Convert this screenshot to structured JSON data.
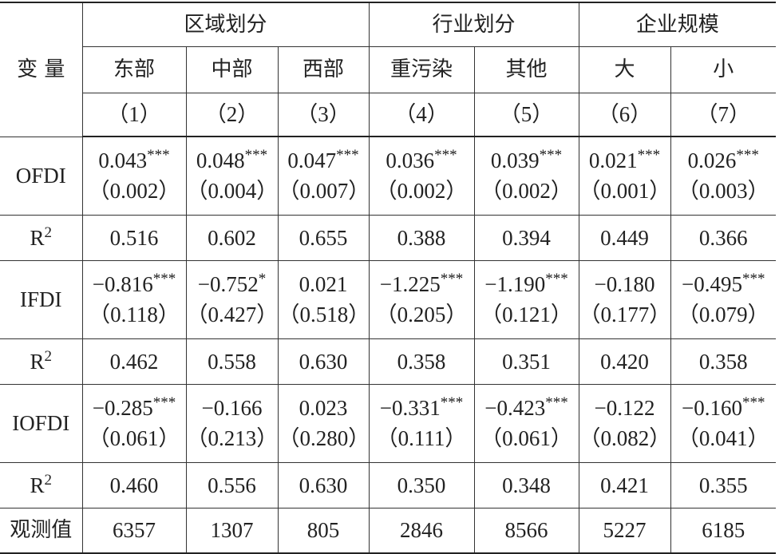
{
  "header": {
    "variable": "变 量",
    "groups": [
      "区域划分",
      "行业划分",
      "企业规模"
    ],
    "subgroups": [
      "东部",
      "中部",
      "西部",
      "重污染",
      "其他",
      "大",
      "小"
    ],
    "columns": [
      "（1）",
      "（2）",
      "（3）",
      "（4）",
      "（5）",
      "（6）",
      "（7）"
    ]
  },
  "rows": [
    {
      "label": "OFDI",
      "cells": [
        {
          "coef": "0.043",
          "stars": "***",
          "se": "（0.002）"
        },
        {
          "coef": "0.048",
          "stars": "***",
          "se": "（0.004）"
        },
        {
          "coef": "0.047",
          "stars": "***",
          "se": "（0.007）"
        },
        {
          "coef": "0.036",
          "stars": "***",
          "se": "（0.002）"
        },
        {
          "coef": "0.039",
          "stars": "***",
          "se": "（0.002）"
        },
        {
          "coef": "0.021",
          "stars": "***",
          "se": "（0.001）"
        },
        {
          "coef": "0.026",
          "stars": "***",
          "se": "（0.003）"
        }
      ]
    },
    {
      "label": {
        "base": "R",
        "sup": "2"
      },
      "values": [
        "0.516",
        "0.602",
        "0.655",
        "0.388",
        "0.394",
        "0.449",
        "0.366"
      ]
    },
    {
      "label": "IFDI",
      "cells": [
        {
          "coef": "−0.816",
          "stars": "***",
          "se": "（0.118）"
        },
        {
          "coef": "−0.752",
          "stars": "*",
          "se": "（0.427）"
        },
        {
          "coef": "0.021",
          "se": "（0.518）"
        },
        {
          "coef": "−1.225",
          "stars": "***",
          "se": "（0.205）"
        },
        {
          "coef": "−1.190",
          "stars": "***",
          "se": "（0.121）"
        },
        {
          "coef": "−0.180",
          "se": "（0.177）"
        },
        {
          "coef": "−0.495",
          "stars": "***",
          "se": "（0.079）"
        }
      ]
    },
    {
      "label": {
        "base": "R",
        "sup": "2"
      },
      "values": [
        "0.462",
        "0.558",
        "0.630",
        "0.358",
        "0.351",
        "0.420",
        "0.358"
      ]
    },
    {
      "label": "IOFDI",
      "cells": [
        {
          "coef": "−0.285",
          "stars": "***",
          "se": "（0.061）"
        },
        {
          "coef": "−0.166",
          "se": "（0.213）"
        },
        {
          "coef": "0.023",
          "se": "（0.280）"
        },
        {
          "coef": "−0.331",
          "stars": "***",
          "se": "（0.111）"
        },
        {
          "coef": "−0.423",
          "stars": "***",
          "se": "（0.061）"
        },
        {
          "coef": "−0.122",
          "se": "（0.082）"
        },
        {
          "coef": "−0.160",
          "stars": "***",
          "se": "（0.041）"
        }
      ]
    },
    {
      "label": {
        "base": "R",
        "sup": "2"
      },
      "values": [
        "0.460",
        "0.556",
        "0.630",
        "0.350",
        "0.348",
        "0.421",
        "0.355"
      ]
    },
    {
      "label": "观测值",
      "values": [
        "6357",
        "1307",
        "805",
        "2846",
        "8566",
        "5227",
        "6185"
      ]
    }
  ]
}
